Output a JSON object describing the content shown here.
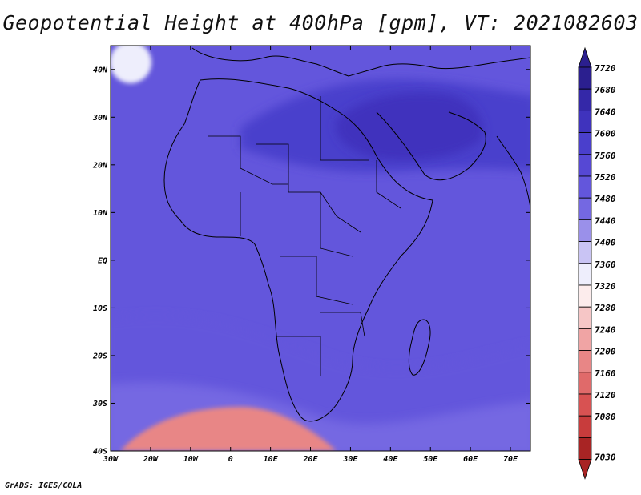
{
  "title": "Geopotential Height at 400hPa [gpm], VT: 2021082603",
  "footer": "GrADS: IGES/COLA",
  "map": {
    "lat_range": [
      -40,
      45
    ],
    "lon_range": [
      -30,
      75
    ],
    "lat_ticks": [
      {
        "value": 40,
        "label": "40N"
      },
      {
        "value": 30,
        "label": "30N"
      },
      {
        "value": 20,
        "label": "20N"
      },
      {
        "value": 10,
        "label": "10N"
      },
      {
        "value": 0,
        "label": "EQ"
      },
      {
        "value": -10,
        "label": "10S"
      },
      {
        "value": -20,
        "label": "20S"
      },
      {
        "value": -30,
        "label": "30S"
      },
      {
        "value": -40,
        "label": "40S"
      }
    ],
    "lon_ticks": [
      {
        "value": -30,
        "label": "30W"
      },
      {
        "value": -20,
        "label": "20W"
      },
      {
        "value": -10,
        "label": "10W"
      },
      {
        "value": 0,
        "label": "0"
      },
      {
        "value": 10,
        "label": "10E"
      },
      {
        "value": 20,
        "label": "20E"
      },
      {
        "value": 30,
        "label": "30E"
      },
      {
        "value": 40,
        "label": "40E"
      },
      {
        "value": 50,
        "label": "50E"
      },
      {
        "value": 60,
        "label": "60E"
      },
      {
        "value": 70,
        "label": "70E"
      }
    ]
  },
  "colorbar": {
    "labels": [
      "7720",
      "7680",
      "7640",
      "7600",
      "7560",
      "7520",
      "7480",
      "7440",
      "7400",
      "7360",
      "7320",
      "7280",
      "7240",
      "7200",
      "7160",
      "7120",
      "7080",
      "7030"
    ],
    "colors": [
      "#2b1f8f",
      "#3428a8",
      "#3f33bd",
      "#4a3fcc",
      "#5648d4",
      "#6356dc",
      "#7468e2",
      "#9a90ea",
      "#c9c4f4",
      "#eeeefc",
      "#fcecec",
      "#f6c6c6",
      "#f0a4a4",
      "#e88686",
      "#e06a6a",
      "#d85252",
      "#c83c3c",
      "#a82424"
    ]
  },
  "levels": {
    "polar_low": 7200,
    "south_mid": 7470,
    "southern_band": 7510,
    "background": 7530,
    "north_high": 7600,
    "arabia_high": 7640,
    "atlantic_low": 7360
  },
  "coast_color": "#000000"
}
